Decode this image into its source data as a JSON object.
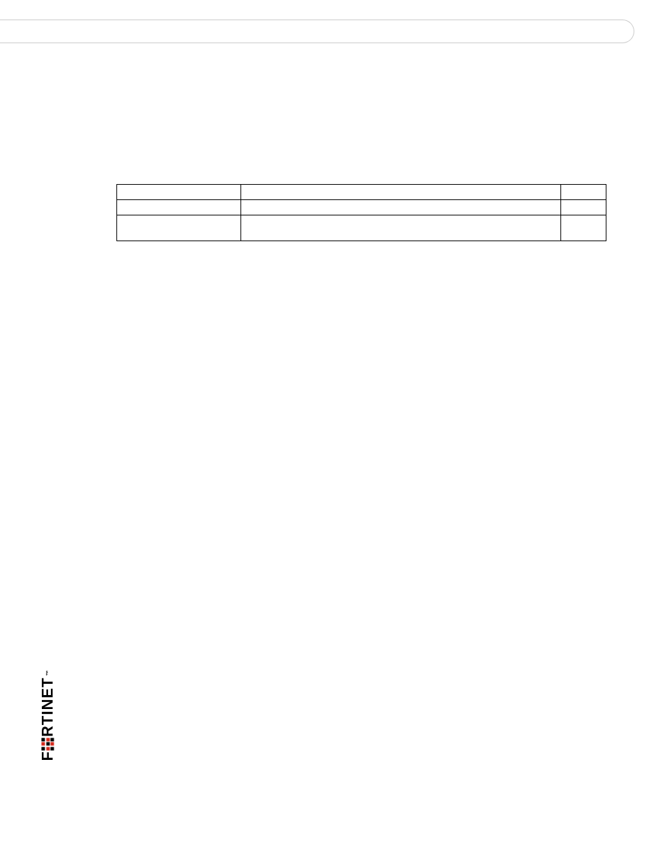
{
  "logo": {
    "brand_prefix": "F",
    "brand_suffix": "RTINET",
    "trademark": "™"
  },
  "table": {
    "rows": [
      {
        "col1": "",
        "col2": "",
        "col3": ""
      },
      {
        "col1": "",
        "col2": "",
        "col3": ""
      },
      {
        "col1": "",
        "col2": "",
        "col3": ""
      }
    ]
  },
  "colors": {
    "border": "#cccccc",
    "table_border": "#000000",
    "logo_red": "#d52b1e",
    "logo_black": "#000000",
    "background": "#ffffff"
  }
}
